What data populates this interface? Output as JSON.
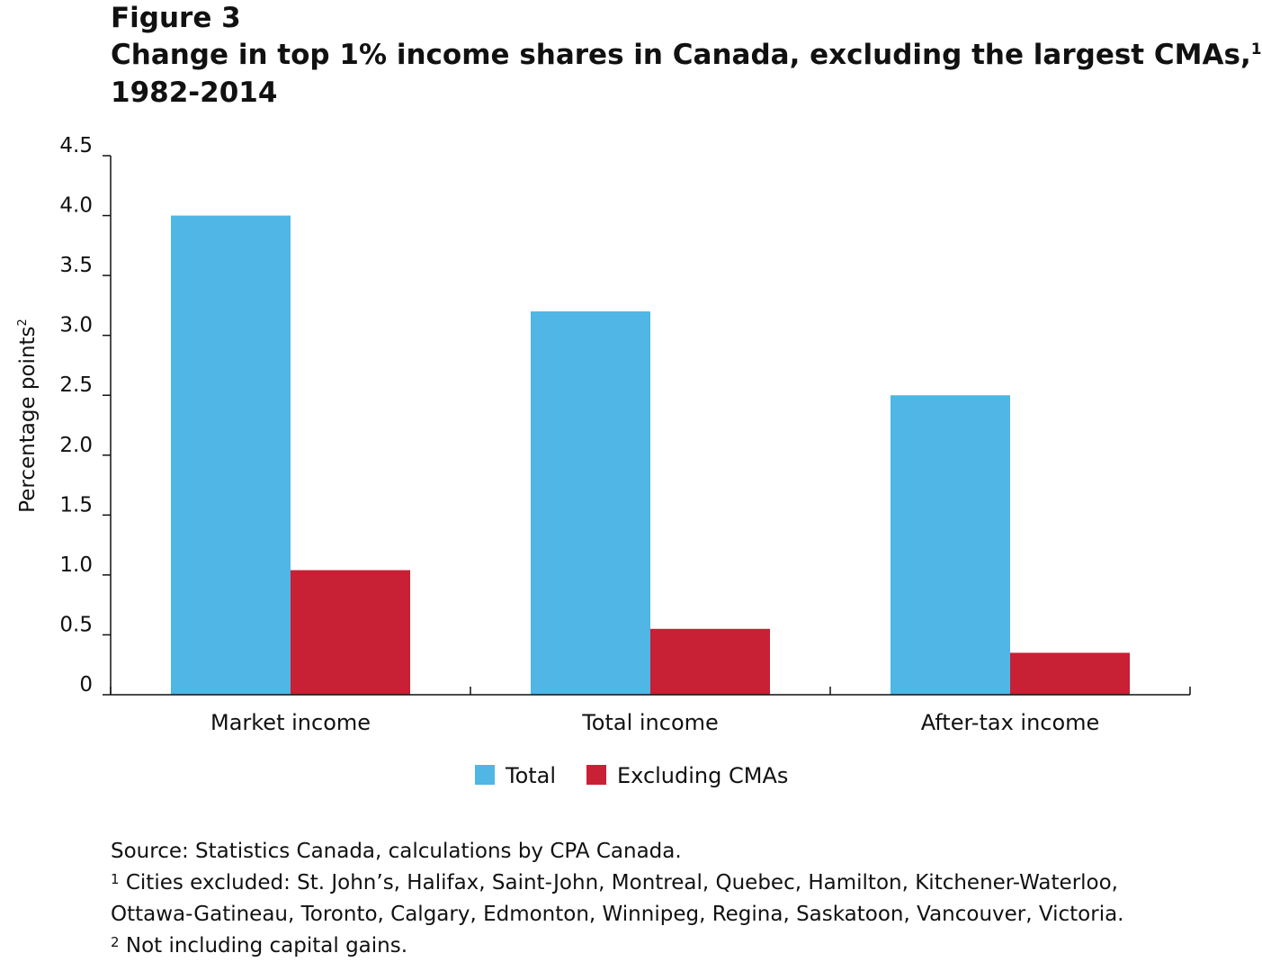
{
  "figure_label": "Figure 3",
  "title": {
    "main": "Change in top 1% income shares in Canada, excluding the largest CMAs,",
    "main_footnote": "1",
    "years": "1982-2014"
  },
  "chart_data": {
    "type": "bar",
    "categories": [
      "Market income",
      "Total income",
      "After-tax income"
    ],
    "series": [
      {
        "name": "Total",
        "color": "#4fb6e5",
        "values": [
          4.0,
          3.2,
          2.5
        ]
      },
      {
        "name": "Excluding CMAs",
        "color": "#c82034",
        "values": [
          1.04,
          0.55,
          0.35
        ]
      }
    ],
    "ylabel": "Percentage points",
    "ylabel_footnote": "2",
    "ylim": [
      0,
      4.5
    ],
    "yticks": [
      "0",
      "0.5",
      "1.0",
      "1.5",
      "2.0",
      "2.5",
      "3.0",
      "3.5",
      "4.0",
      "4.5"
    ],
    "ytick_values": [
      0,
      0.5,
      1.0,
      1.5,
      2.0,
      2.5,
      3.0,
      3.5,
      4.0,
      4.5
    ],
    "grid": false,
    "legend_position": "bottom-center"
  },
  "notes": {
    "source": "Source: Statistics Canada, calculations by CPA Canada.",
    "note1_marker": "1",
    "note1_line1": " Cities excluded: St. John’s, Halifax, Saint-John, Montreal, Quebec, Hamilton, Kitchener-Waterloo,",
    "note1_line2": "Ottawa-Gatineau, Toronto, Calgary, Edmonton, Winnipeg, Regina, Saskatoon, Vancouver, Victoria.",
    "note2_marker": "2",
    "note2_text": " Not including capital gains."
  }
}
